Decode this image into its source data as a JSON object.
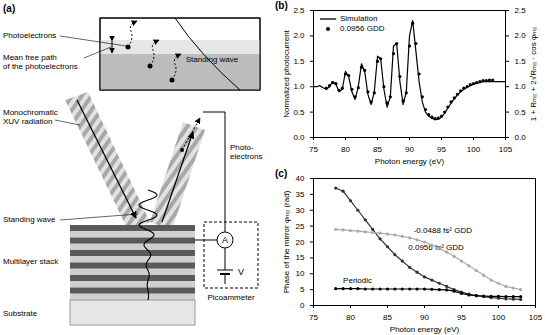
{
  "diagram": {
    "panel_label": "(a)",
    "labels": {
      "photoelectrons": "Photoelectrons",
      "mean_free_path": [
        "Mean free path",
        "of the photoelectrons"
      ],
      "inset_standing_wave": "Standing wave",
      "radiation": [
        "Monochromatic",
        "XUV radiation"
      ],
      "photo_electrons": [
        "Photo-",
        "electrons"
      ],
      "standing_wave": "Standing wave",
      "multilayer": "Multilayer stack",
      "substrate": "Substrate",
      "ammeter": "A",
      "voltage": "V",
      "picoammeter": "Picoammeter"
    }
  },
  "chart_data": [
    {
      "type": "line",
      "title": "(b)",
      "x_label": "Photon energy (eV)",
      "y_label": "Normalized photocurrent",
      "y2_label": "1 + Rₘᵢᵣ + 2√Rₘᵢᵣ · cos φₘᵢᵣ",
      "xlim": [
        75,
        105
      ],
      "xticks": [
        75,
        80,
        85,
        90,
        95,
        100,
        105
      ],
      "ylim": [
        0,
        2.5
      ],
      "yticks": [
        {
          "value": 0,
          "label": "0.0"
        },
        0.5,
        {
          "value": 1,
          "label": "1.0"
        },
        1.5,
        {
          "value": 2,
          "label": "2.0"
        },
        2.5
      ],
      "y2lim": [
        0,
        2.5
      ],
      "y2ticks": [
        {
          "value": 0,
          "label": "0.0"
        },
        0.5,
        {
          "value": 1,
          "label": "1.0"
        },
        1.5,
        {
          "value": 2,
          "label": "2.0"
        },
        2.5
      ],
      "legend": "top-left",
      "series": [
        {
          "name": "Simulation",
          "type": "line",
          "color": "#000000",
          "line_style": "solid",
          "axis": "y2",
          "x": [
            75,
            75.5,
            76,
            76.5,
            77,
            77.5,
            78,
            78.5,
            79,
            79.5,
            80,
            80.5,
            81,
            81.5,
            82,
            82.5,
            83,
            83.5,
            84,
            84.5,
            85,
            85.5,
            86,
            86.5,
            87,
            87.5,
            88,
            88.5,
            89,
            89.5,
            90,
            90.5,
            91,
            91.5,
            92,
            92.5,
            93,
            93.5,
            94,
            94.5,
            95,
            95.5,
            96,
            96.5,
            97,
            97.5,
            98,
            98.5,
            99,
            99.5,
            100,
            100.5,
            101,
            101.5,
            102,
            102.5,
            103,
            103.5,
            104,
            104.5,
            105
          ],
          "values": [
            1.0,
            1.0,
            1.02,
            0.98,
            0.95,
            1.0,
            1.1,
            1.05,
            0.9,
            0.95,
            1.3,
            1.2,
            0.9,
            0.75,
            1.0,
            1.45,
            1.3,
            0.85,
            0.65,
            0.9,
            1.6,
            1.55,
            0.95,
            0.6,
            0.8,
            1.8,
            1.85,
            1.1,
            0.65,
            0.9,
            2.0,
            2.3,
            1.7,
            1.1,
            0.7,
            0.5,
            0.42,
            0.38,
            0.35,
            0.36,
            0.4,
            0.48,
            0.58,
            0.68,
            0.76,
            0.84,
            0.9,
            0.95,
            0.99,
            1.02,
            1.05,
            1.07,
            1.08,
            1.1,
            1.1,
            1.1,
            1.1,
            1.1,
            1.1,
            1.1,
            1.1
          ]
        },
        {
          "name": "0.0956 GDD",
          "type": "scatter",
          "color": "#000000",
          "marker": "circle",
          "x": [
            77,
            77.5,
            78,
            78.5,
            79,
            79.5,
            80,
            80.5,
            81,
            81.5,
            82,
            82.5,
            83,
            83.5,
            84,
            84.5,
            85,
            85.5,
            86,
            86.5,
            87,
            87.5,
            88,
            88.5,
            89,
            89.5,
            90,
            90.5,
            91,
            91.5,
            92,
            92.5,
            93,
            93.5,
            94,
            94.5,
            95,
            95.5,
            96,
            96.5,
            97,
            97.5,
            98,
            98.5,
            99,
            99.5,
            100,
            100.5,
            101,
            101.5,
            102,
            102.5,
            103
          ],
          "values": [
            0.97,
            1.02,
            1.08,
            1.06,
            0.93,
            0.97,
            1.25,
            1.22,
            0.95,
            0.8,
            0.98,
            1.38,
            1.32,
            0.9,
            0.7,
            0.88,
            1.5,
            1.55,
            1.0,
            0.68,
            0.8,
            1.65,
            1.85,
            1.2,
            0.72,
            0.88,
            1.8,
            2.25,
            1.85,
            1.25,
            0.8,
            0.55,
            0.45,
            0.4,
            0.37,
            0.38,
            0.42,
            0.5,
            0.6,
            0.7,
            0.78,
            0.85,
            0.92,
            0.97,
            1.0,
            1.04,
            1.06,
            1.08,
            1.1,
            1.12,
            1.12,
            1.13,
            1.13
          ]
        }
      ]
    },
    {
      "type": "line",
      "title": "(c)",
      "x_label": "Photon energy (eV)",
      "y_label": "Phase of the mirror φₘᵢᵣ (rad)",
      "xlim": [
        75,
        105
      ],
      "xticks": [
        75,
        80,
        85,
        90,
        95,
        100,
        105
      ],
      "ylim": [
        0,
        40
      ],
      "yticks": [
        0,
        5,
        10,
        15,
        20,
        25,
        30,
        35,
        40
      ],
      "series": [
        {
          "name": "0.0956 fs² GDD",
          "color": "#333333",
          "marker": "circle",
          "line_style": "solid",
          "x": [
            78,
            79,
            80,
            81,
            82,
            83,
            84,
            85,
            86,
            87,
            88,
            89,
            90,
            91,
            92,
            93,
            94,
            95,
            96,
            97,
            98,
            99,
            100,
            101,
            102,
            103
          ],
          "values": [
            37,
            36,
            33,
            30,
            27,
            24,
            21,
            18.5,
            16,
            14,
            12,
            10.5,
            9,
            8,
            7,
            6,
            5,
            4.2,
            3.6,
            3.1,
            2.8,
            2.5,
            2.3,
            2.1,
            2,
            1.9
          ]
        },
        {
          "name": "-0.0488 fs² GDD",
          "color": "#aaaaaa",
          "marker": "circle",
          "line_style": "solid",
          "x": [
            78,
            79,
            80,
            81,
            82,
            83,
            84,
            85,
            86,
            87,
            88,
            89,
            90,
            91,
            92,
            93,
            94,
            95,
            96,
            97,
            98,
            99,
            100,
            101,
            102,
            103
          ],
          "values": [
            24,
            23.8,
            23.6,
            23.4,
            23.2,
            23,
            22.8,
            22.5,
            22.2,
            21.8,
            21.3,
            20.7,
            20,
            19,
            18,
            16.8,
            15.5,
            14,
            12.5,
            11,
            9.5,
            8,
            7,
            6,
            5.5,
            5
          ]
        },
        {
          "name": "Periodic",
          "color": "#000000",
          "marker": "circle",
          "line_style": "solid",
          "x": [
            78,
            79,
            80,
            81,
            82,
            83,
            84,
            85,
            86,
            87,
            88,
            89,
            90,
            91,
            92,
            93,
            94,
            95,
            96,
            97,
            98,
            99,
            100,
            101,
            102,
            103
          ],
          "values": [
            5.3,
            5.3,
            5.3,
            5.3,
            5.2,
            5.2,
            5.2,
            5.2,
            5.2,
            5.2,
            5.2,
            5.2,
            5.2,
            5.1,
            5.0,
            4.9,
            4.5,
            3.8,
            3.3,
            3.1,
            3.0,
            2.9,
            2.9,
            2.8,
            2.8,
            2.8
          ]
        }
      ]
    }
  ]
}
